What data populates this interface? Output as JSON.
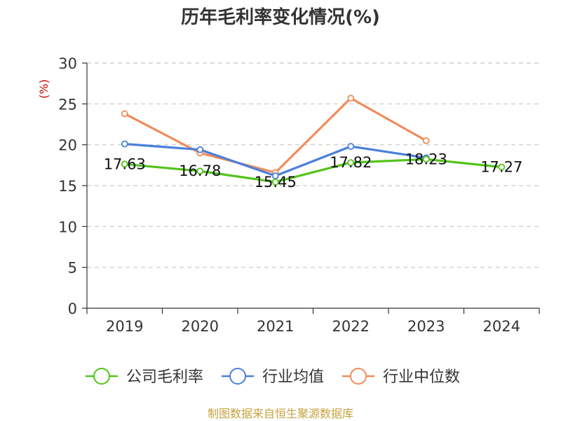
{
  "chart_title": "历年毛利率变化情况(%)",
  "source_note": "制图数据来自恒生聚源数据库",
  "chart_data": {
    "type": "line",
    "title": "历年毛利率变化情况(%)",
    "ylabel": "(%)",
    "xlabel": "",
    "categories": [
      "2019",
      "2020",
      "2021",
      "2022",
      "2023",
      "2024"
    ],
    "ylim": [
      0,
      30
    ],
    "yticks": [
      0,
      5,
      10,
      15,
      20,
      25,
      30
    ],
    "grid": true,
    "legend_position": "bottom",
    "series": [
      {
        "name": "公司毛利率",
        "color": "#52c41a",
        "values": [
          17.63,
          16.78,
          15.45,
          17.82,
          18.23,
          17.27
        ],
        "show_labels": true
      },
      {
        "name": "行业均值",
        "color": "#4a7fdb",
        "values": [
          20.1,
          19.4,
          16.2,
          19.8,
          18.4,
          null
        ],
        "show_labels": false
      },
      {
        "name": "行业中位数",
        "color": "#f08c5a",
        "values": [
          23.8,
          19.0,
          16.6,
          25.7,
          20.5,
          null
        ],
        "show_labels": false
      }
    ]
  }
}
